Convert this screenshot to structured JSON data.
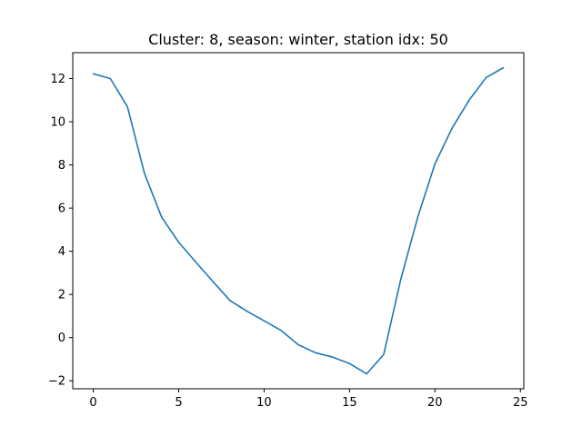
{
  "chart_data": {
    "type": "line",
    "title": "Cluster: 8, season: winter, station idx: 50",
    "xlabel": "",
    "ylabel": "",
    "xlim": [
      -1.2,
      25.2
    ],
    "ylim": [
      -2.37,
      13.2
    ],
    "xticks": [
      0,
      5,
      10,
      15,
      20,
      25
    ],
    "yticks": [
      -2,
      0,
      2,
      4,
      6,
      8,
      10,
      12
    ],
    "grid": false,
    "series": [
      {
        "color": "#1f77b4",
        "x": [
          0,
          1,
          2,
          3,
          4,
          5,
          6,
          7,
          8,
          9,
          10,
          11,
          12,
          13,
          14,
          15,
          16,
          17,
          18,
          19,
          20,
          21,
          22,
          23,
          24
        ],
        "y": [
          12.22,
          12.0,
          10.7,
          7.6,
          5.58,
          4.42,
          3.5,
          2.6,
          1.72,
          1.22,
          0.78,
          0.33,
          -0.33,
          -0.7,
          -0.9,
          -1.2,
          -1.68,
          -0.78,
          2.7,
          5.6,
          8.05,
          9.7,
          11.0,
          12.05,
          12.5
        ]
      }
    ]
  }
}
